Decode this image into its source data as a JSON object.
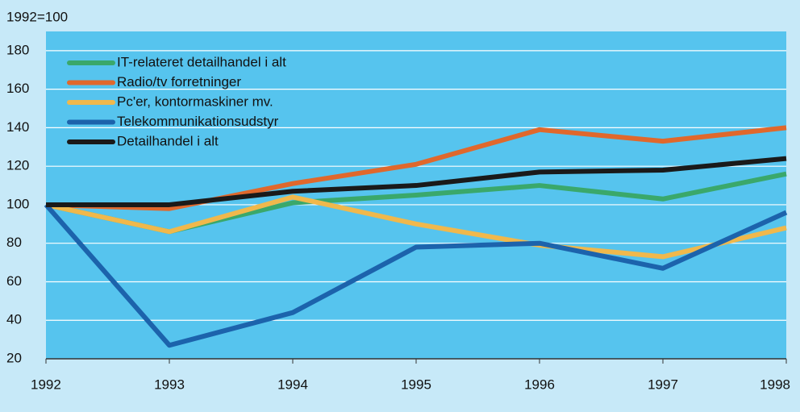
{
  "chart_data": {
    "type": "line",
    "ylabel": "1992=100",
    "x": [
      1992,
      1993,
      1994,
      1995,
      1996,
      1997,
      1998
    ],
    "xlim": [
      1992,
      1998
    ],
    "xticks": [
      1992,
      1993,
      1994,
      1995,
      1996,
      1997,
      1998
    ],
    "ylim": [
      20,
      190
    ],
    "yticks": [
      20,
      40,
      60,
      80,
      100,
      120,
      140,
      160,
      180
    ],
    "grid": true,
    "legend": "upper-left",
    "series": [
      {
        "name": "IT-relateret detailhandel i alt",
        "color": "#3aa86b",
        "values": [
          100,
          86,
          101,
          105,
          110,
          103,
          116
        ]
      },
      {
        "name": "Radio/tv forretninger",
        "color": "#e0682c",
        "values": [
          100,
          98,
          111,
          121,
          139,
          133,
          140
        ]
      },
      {
        "name": "Pc'er, kontormaskiner mv.",
        "color": "#f0b84c",
        "values": [
          100,
          86,
          104,
          90,
          79,
          73,
          88
        ]
      },
      {
        "name": "Telekommunikationsudstyr",
        "color": "#1c63ac",
        "values": [
          100,
          27,
          44,
          78,
          80,
          67,
          96
        ]
      },
      {
        "name": "Detailhandel i alt",
        "color": "#1a1a1a",
        "values": [
          100,
          100,
          107,
          110,
          117,
          118,
          124
        ]
      }
    ]
  }
}
